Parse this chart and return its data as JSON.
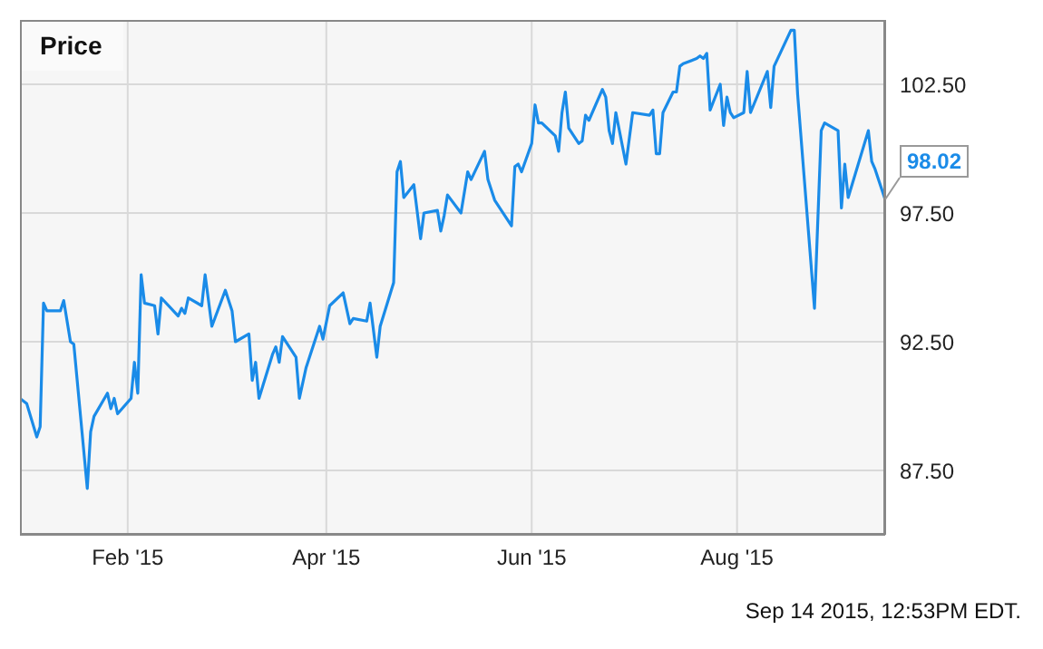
{
  "chart_data": {
    "type": "line",
    "title": "Price",
    "x": [
      "2014-12-31",
      "2015-01-02",
      "2015-01-05",
      "2015-01-06",
      "2015-01-07",
      "2015-01-08",
      "2015-01-12",
      "2015-01-13",
      "2015-01-15",
      "2015-01-16",
      "2015-01-20",
      "2015-01-21",
      "2015-01-22",
      "2015-01-26",
      "2015-01-27",
      "2015-01-28",
      "2015-01-29",
      "2015-02-02",
      "2015-02-03",
      "2015-02-04",
      "2015-02-05",
      "2015-02-06",
      "2015-02-09",
      "2015-02-10",
      "2015-02-11",
      "2015-02-16",
      "2015-02-17",
      "2015-02-18",
      "2015-02-19",
      "2015-02-23",
      "2015-02-24",
      "2015-02-26",
      "2015-03-02",
      "2015-03-04",
      "2015-03-05",
      "2015-03-09",
      "2015-03-10",
      "2015-03-11",
      "2015-03-12",
      "2015-03-16",
      "2015-03-17",
      "2015-03-18",
      "2015-03-19",
      "2015-03-23",
      "2015-03-24",
      "2015-03-26",
      "2015-03-30",
      "2015-03-31",
      "2015-04-02",
      "2015-04-06",
      "2015-04-08",
      "2015-04-09",
      "2015-04-13",
      "2015-04-14",
      "2015-04-16",
      "2015-04-17",
      "2015-04-21",
      "2015-04-22",
      "2015-04-23",
      "2015-04-24",
      "2015-04-27",
      "2015-04-29",
      "2015-04-30",
      "2015-05-04",
      "2015-05-05",
      "2015-05-06",
      "2015-05-07",
      "2015-05-11",
      "2015-05-13",
      "2015-05-14",
      "2015-05-18",
      "2015-05-19",
      "2015-05-21",
      "2015-05-26",
      "2015-05-27",
      "2015-05-28",
      "2015-05-29",
      "2015-06-01",
      "2015-06-02",
      "2015-06-03",
      "2015-06-04",
      "2015-06-08",
      "2015-06-09",
      "2015-06-10",
      "2015-06-11",
      "2015-06-12",
      "2015-06-15",
      "2015-06-16",
      "2015-06-17",
      "2015-06-18",
      "2015-06-22",
      "2015-06-23",
      "2015-06-24",
      "2015-06-25",
      "2015-06-26",
      "2015-06-29",
      "2015-07-01",
      "2015-07-06",
      "2015-07-07",
      "2015-07-08",
      "2015-07-09",
      "2015-07-10",
      "2015-07-13",
      "2015-07-14",
      "2015-07-15",
      "2015-07-16",
      "2015-07-20",
      "2015-07-21",
      "2015-07-22",
      "2015-07-23",
      "2015-07-24",
      "2015-07-27",
      "2015-07-28",
      "2015-07-29",
      "2015-07-30",
      "2015-07-31",
      "2015-08-03",
      "2015-08-04",
      "2015-08-05",
      "2015-08-10",
      "2015-08-11",
      "2015-08-12",
      "2015-08-17",
      "2015-08-18",
      "2015-08-19",
      "2015-08-24",
      "2015-08-26",
      "2015-08-27",
      "2015-08-31",
      "2015-09-01",
      "2015-09-02",
      "2015-09-03",
      "2015-09-09",
      "2015-09-10",
      "2015-09-11",
      "2015-09-14"
    ],
    "series": [
      {
        "color": "#1a8be8",
        "values": [
          90.3,
          90.1,
          88.8,
          89.2,
          94.0,
          93.7,
          93.7,
          94.1,
          92.5,
          92.4,
          86.8,
          89.0,
          89.6,
          90.5,
          89.9,
          90.3,
          89.7,
          90.3,
          91.7,
          90.5,
          95.1,
          94.0,
          93.9,
          92.8,
          94.2,
          93.5,
          93.8,
          93.6,
          94.2,
          93.9,
          95.1,
          93.1,
          94.5,
          93.7,
          92.5,
          92.8,
          91.0,
          91.7,
          90.3,
          92.0,
          92.3,
          91.7,
          92.7,
          91.9,
          90.3,
          91.5,
          93.1,
          92.6,
          93.9,
          94.4,
          93.2,
          93.4,
          93.3,
          94.0,
          91.9,
          93.1,
          94.8,
          99.1,
          99.5,
          98.1,
          98.6,
          96.5,
          97.5,
          97.6,
          96.8,
          97.4,
          98.2,
          97.5,
          99.1,
          98.8,
          99.9,
          98.8,
          98.0,
          97.0,
          99.3,
          99.4,
          99.1,
          100.2,
          101.7,
          101.0,
          101.0,
          100.5,
          99.9,
          101.4,
          102.2,
          100.8,
          100.2,
          100.3,
          101.3,
          101.1,
          102.3,
          102.0,
          100.7,
          100.2,
          101.4,
          99.4,
          101.4,
          101.3,
          101.5,
          99.8,
          99.8,
          101.4,
          102.2,
          102.2,
          103.2,
          103.3,
          103.5,
          103.6,
          103.5,
          103.7,
          101.5,
          102.5,
          100.9,
          102.0,
          101.4,
          101.2,
          101.4,
          103.0,
          101.4,
          103.0,
          101.6,
          103.2,
          104.6,
          104.6,
          102.1,
          93.8,
          100.7,
          101.0,
          100.7,
          97.7,
          99.4,
          98.1,
          100.7,
          99.5,
          99.2,
          98.02
        ]
      }
    ],
    "xlim": [
      "2014-12-31",
      "2015-09-14"
    ],
    "xticks": [
      {
        "value": "2015-02-01",
        "label": "Feb '15"
      },
      {
        "value": "2015-04-01",
        "label": "Apr '15"
      },
      {
        "value": "2015-06-01",
        "label": "Jun '15"
      },
      {
        "value": "2015-08-01",
        "label": "Aug '15"
      }
    ],
    "ylim": [
      85,
      105
    ],
    "yticks": [
      {
        "value": 87.5,
        "label": "87.50"
      },
      {
        "value": 92.5,
        "label": "92.50"
      },
      {
        "value": 97.5,
        "label": "97.50"
      },
      {
        "value": 102.5,
        "label": "102.50"
      }
    ],
    "grid": true,
    "annotations": [
      {
        "text": "98.02",
        "x": "2015-09-14",
        "y": 98.02
      },
      "Sep 14 2015, 12:53PM EDT."
    ]
  }
}
